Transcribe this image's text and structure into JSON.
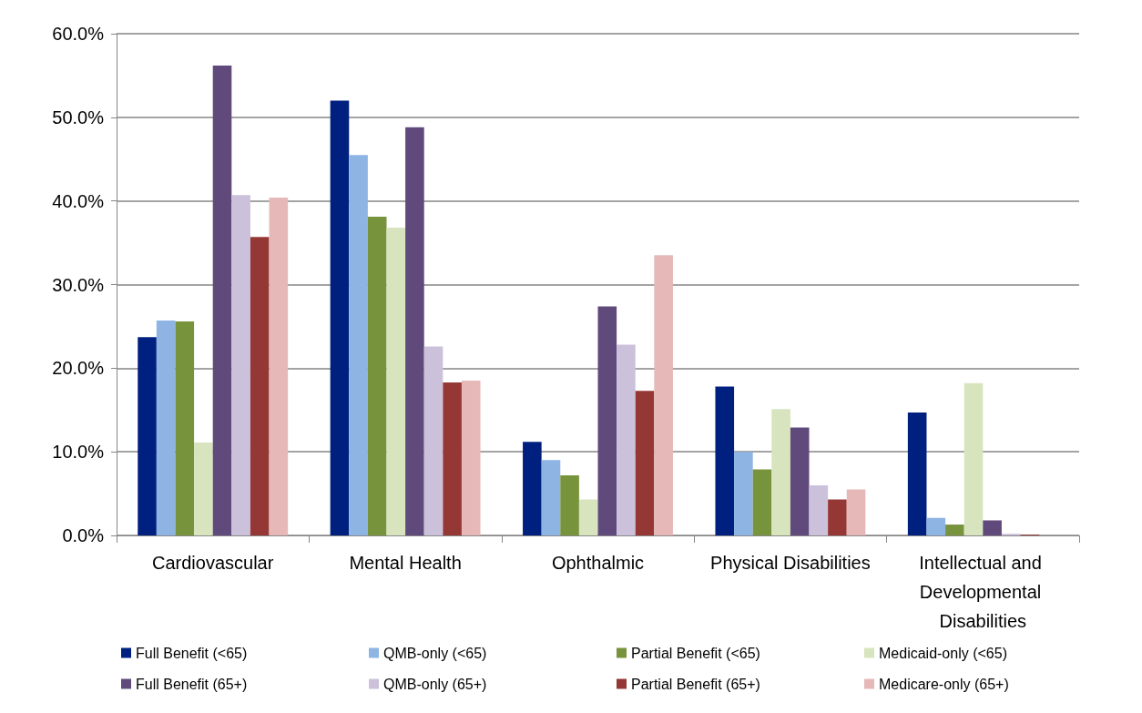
{
  "chart_data": {
    "type": "bar",
    "categories": [
      "Cardiovascular",
      "Mental Health",
      "Ophthalmic",
      "Physical Disabilities",
      "Intellectual and Developmental Disabilities"
    ],
    "series": [
      {
        "name": "Full Benefit (<65)",
        "color": "#002080",
        "values": [
          23.7,
          52.0,
          11.2,
          17.8,
          14.7
        ]
      },
      {
        "name": "QMB-only (<65)",
        "color": "#8eb4e3",
        "values": [
          25.7,
          45.5,
          9.0,
          10.0,
          2.1
        ]
      },
      {
        "name": "Partial Benefit (<65)",
        "color": "#77933c",
        "values": [
          25.6,
          38.1,
          7.2,
          7.9,
          1.3
        ]
      },
      {
        "name": "Medicaid-only (<65)",
        "color": "#d7e4bd",
        "values": [
          11.1,
          36.8,
          4.3,
          15.1,
          18.2
        ]
      },
      {
        "name": "Full Benefit (65+)",
        "color": "#604a7b",
        "values": [
          56.2,
          48.8,
          27.4,
          12.9,
          1.8
        ]
      },
      {
        "name": "QMB-only (65+)",
        "color": "#ccc1da",
        "values": [
          40.7,
          22.6,
          22.8,
          6.0,
          0.2
        ]
      },
      {
        "name": "Partial Benefit (65+)",
        "color": "#953735",
        "values": [
          35.7,
          18.3,
          17.3,
          4.3,
          0.1
        ]
      },
      {
        "name": "Medicare-only (65+)",
        "color": "#e6b9b8",
        "values": [
          40.4,
          18.5,
          33.5,
          5.5,
          null
        ]
      }
    ],
    "ylim": [
      0,
      60
    ],
    "yticks": [
      {
        "value": 0,
        "label": "0.0%"
      },
      {
        "value": 10,
        "label": "10.0%"
      },
      {
        "value": 20,
        "label": "20.0%"
      },
      {
        "value": 30,
        "label": "30.0%"
      },
      {
        "value": 40,
        "label": "40.0%"
      },
      {
        "value": 50,
        "label": "50.0%"
      },
      {
        "value": 60,
        "label": "60.0%"
      }
    ],
    "grid": "y",
    "legend": "bottom"
  }
}
